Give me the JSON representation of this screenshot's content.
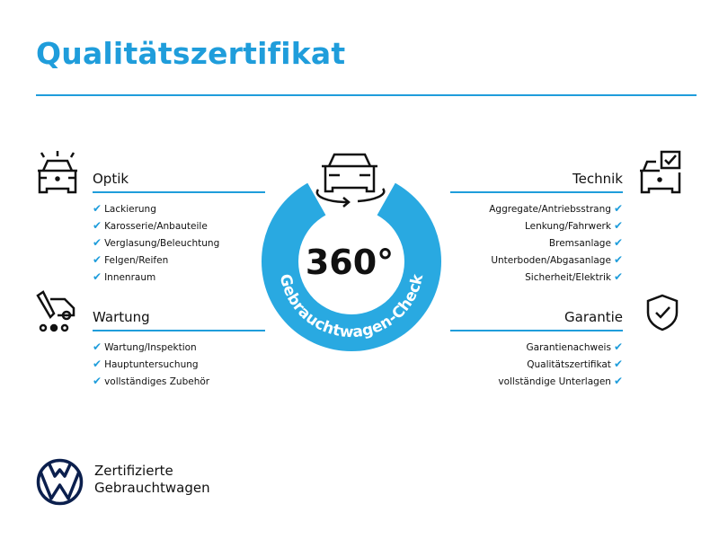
{
  "title": "Qualitätszertifikat",
  "colors": {
    "accent": "#1f9ddb",
    "ring": "#29a9e1"
  },
  "center": {
    "big": "360°",
    "ring_text": "Gebrauchtwagen-Check",
    "icon": "car-rotate-icon"
  },
  "sections": {
    "optik": {
      "heading": "Optik",
      "icon": "car-lights-icon",
      "items": [
        "Lackierung",
        "Karosserie/Anbauteile",
        "Verglasung/Beleuchtung",
        "Felgen/Reifen",
        "Innenraum"
      ]
    },
    "wartung": {
      "heading": "Wartung",
      "icon": "service-wrench-car-icon",
      "items": [
        "Wartung/Inspektion",
        "Hauptuntersuchung",
        "vollständiges Zubehör"
      ]
    },
    "technik": {
      "heading": "Technik",
      "icon": "car-checklist-icon",
      "items": [
        "Aggregate/Antriebsstrang",
        "Lenkung/Fahrwerk",
        "Bremsanlage",
        "Unterboden/Abgasanlage",
        "Sicherheit/Elektrik"
      ]
    },
    "garantie": {
      "heading": "Garantie",
      "icon": "shield-check-icon",
      "items": [
        "Garantienachweis",
        "Qualitätszertifikat",
        "vollständige Unterlagen"
      ]
    }
  },
  "check_mark": "✔",
  "brand": {
    "line1": "Zertifizierte",
    "line2": "Gebrauchtwagen",
    "logo": "VW"
  }
}
